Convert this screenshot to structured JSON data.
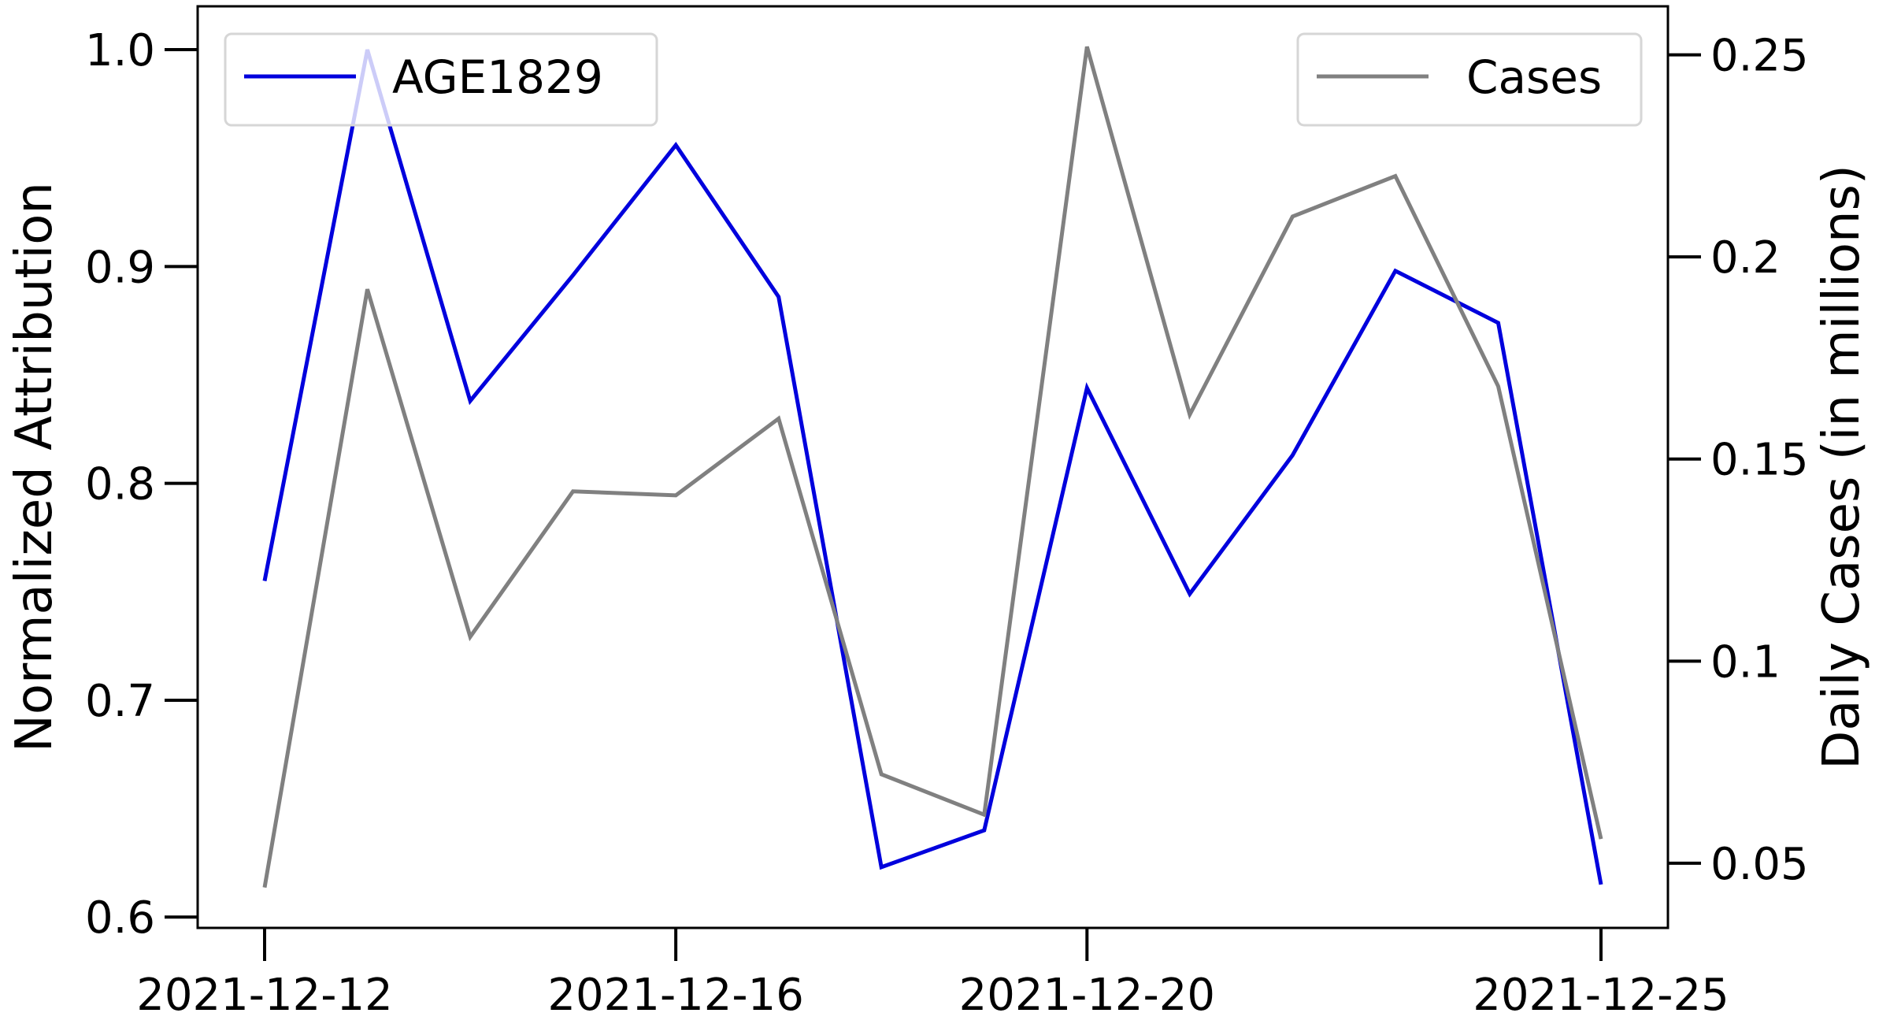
{
  "chart_data": {
    "type": "line",
    "x": [
      "2021-12-12",
      "2021-12-13",
      "2021-12-14",
      "2021-12-15",
      "2021-12-16",
      "2021-12-17",
      "2021-12-18",
      "2021-12-19",
      "2021-12-20",
      "2021-12-21",
      "2021-12-22",
      "2021-12-23",
      "2021-12-24",
      "2021-12-25"
    ],
    "series": [
      {
        "name": "AGE1829",
        "axis": "left",
        "color": "#0000dd",
        "values": [
          0.755,
          1.0,
          0.838,
          0.896,
          0.956,
          0.886,
          0.623,
          0.64,
          0.844,
          0.749,
          0.813,
          0.898,
          0.874,
          0.615
        ]
      },
      {
        "name": "Cases",
        "axis": "right",
        "color": "#808080",
        "values": [
          0.044,
          0.192,
          0.106,
          0.142,
          0.141,
          0.16,
          0.072,
          0.062,
          0.252,
          0.161,
          0.21,
          0.22,
          0.168,
          0.056
        ]
      }
    ],
    "xticks": [
      "2021-12-12",
      "2021-12-16",
      "2021-12-20",
      "2021-12-25"
    ],
    "y_left": {
      "label": "Normalized Attribution",
      "lim": [
        0.595,
        1.02
      ],
      "ticks": [
        "0.6",
        "0.7",
        "0.8",
        "0.9",
        "1.0"
      ]
    },
    "y_right": {
      "label": "Daily Cases (in millions)",
      "lim": [
        0.034,
        0.262
      ],
      "ticks": [
        "0.05",
        "0.1",
        "0.15",
        "0.2",
        "0.25"
      ]
    },
    "legend": [
      {
        "label": "AGE1829",
        "placement": "top-left"
      },
      {
        "label": "Cases",
        "placement": "top-right"
      }
    ],
    "grid": false
  }
}
